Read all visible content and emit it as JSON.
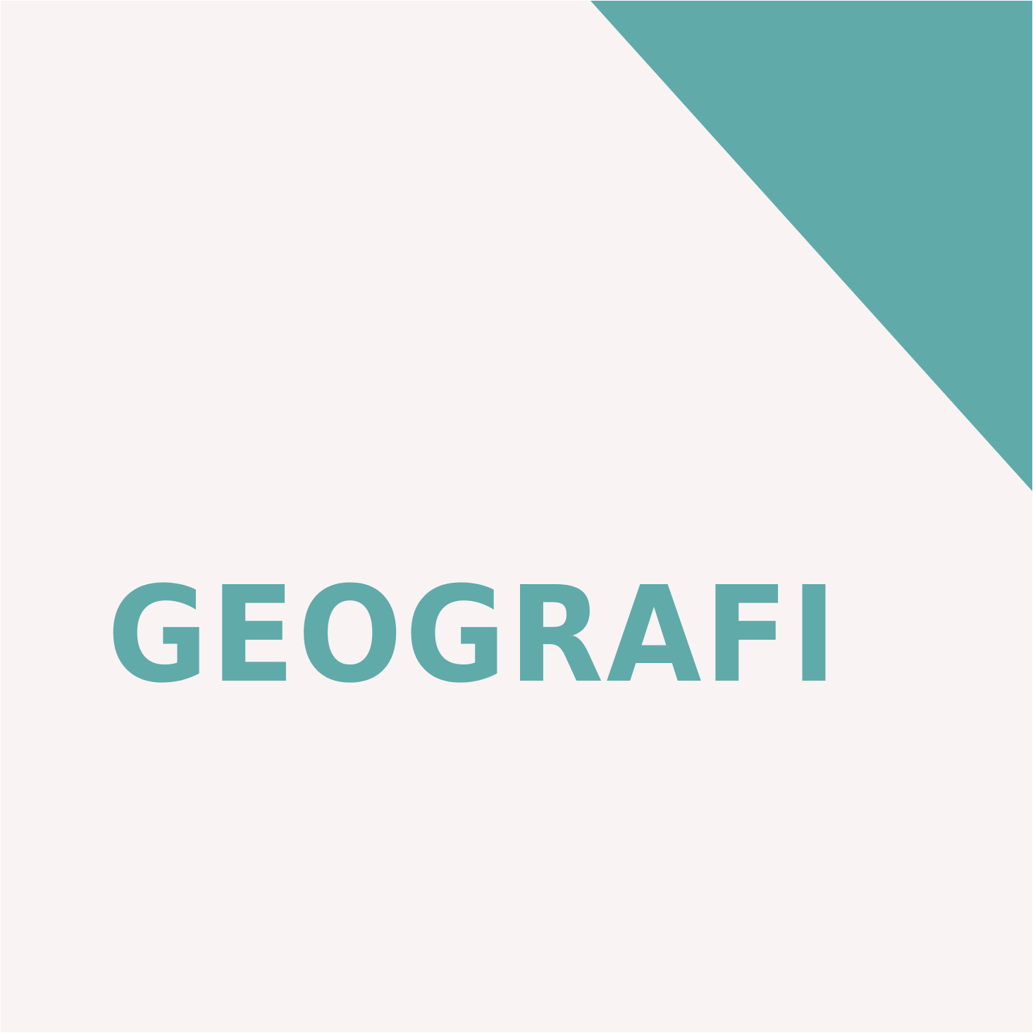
{
  "title": "GEOGRAFI",
  "colors": {
    "background": "#f9f3f3",
    "accent": "#60aaaa"
  }
}
